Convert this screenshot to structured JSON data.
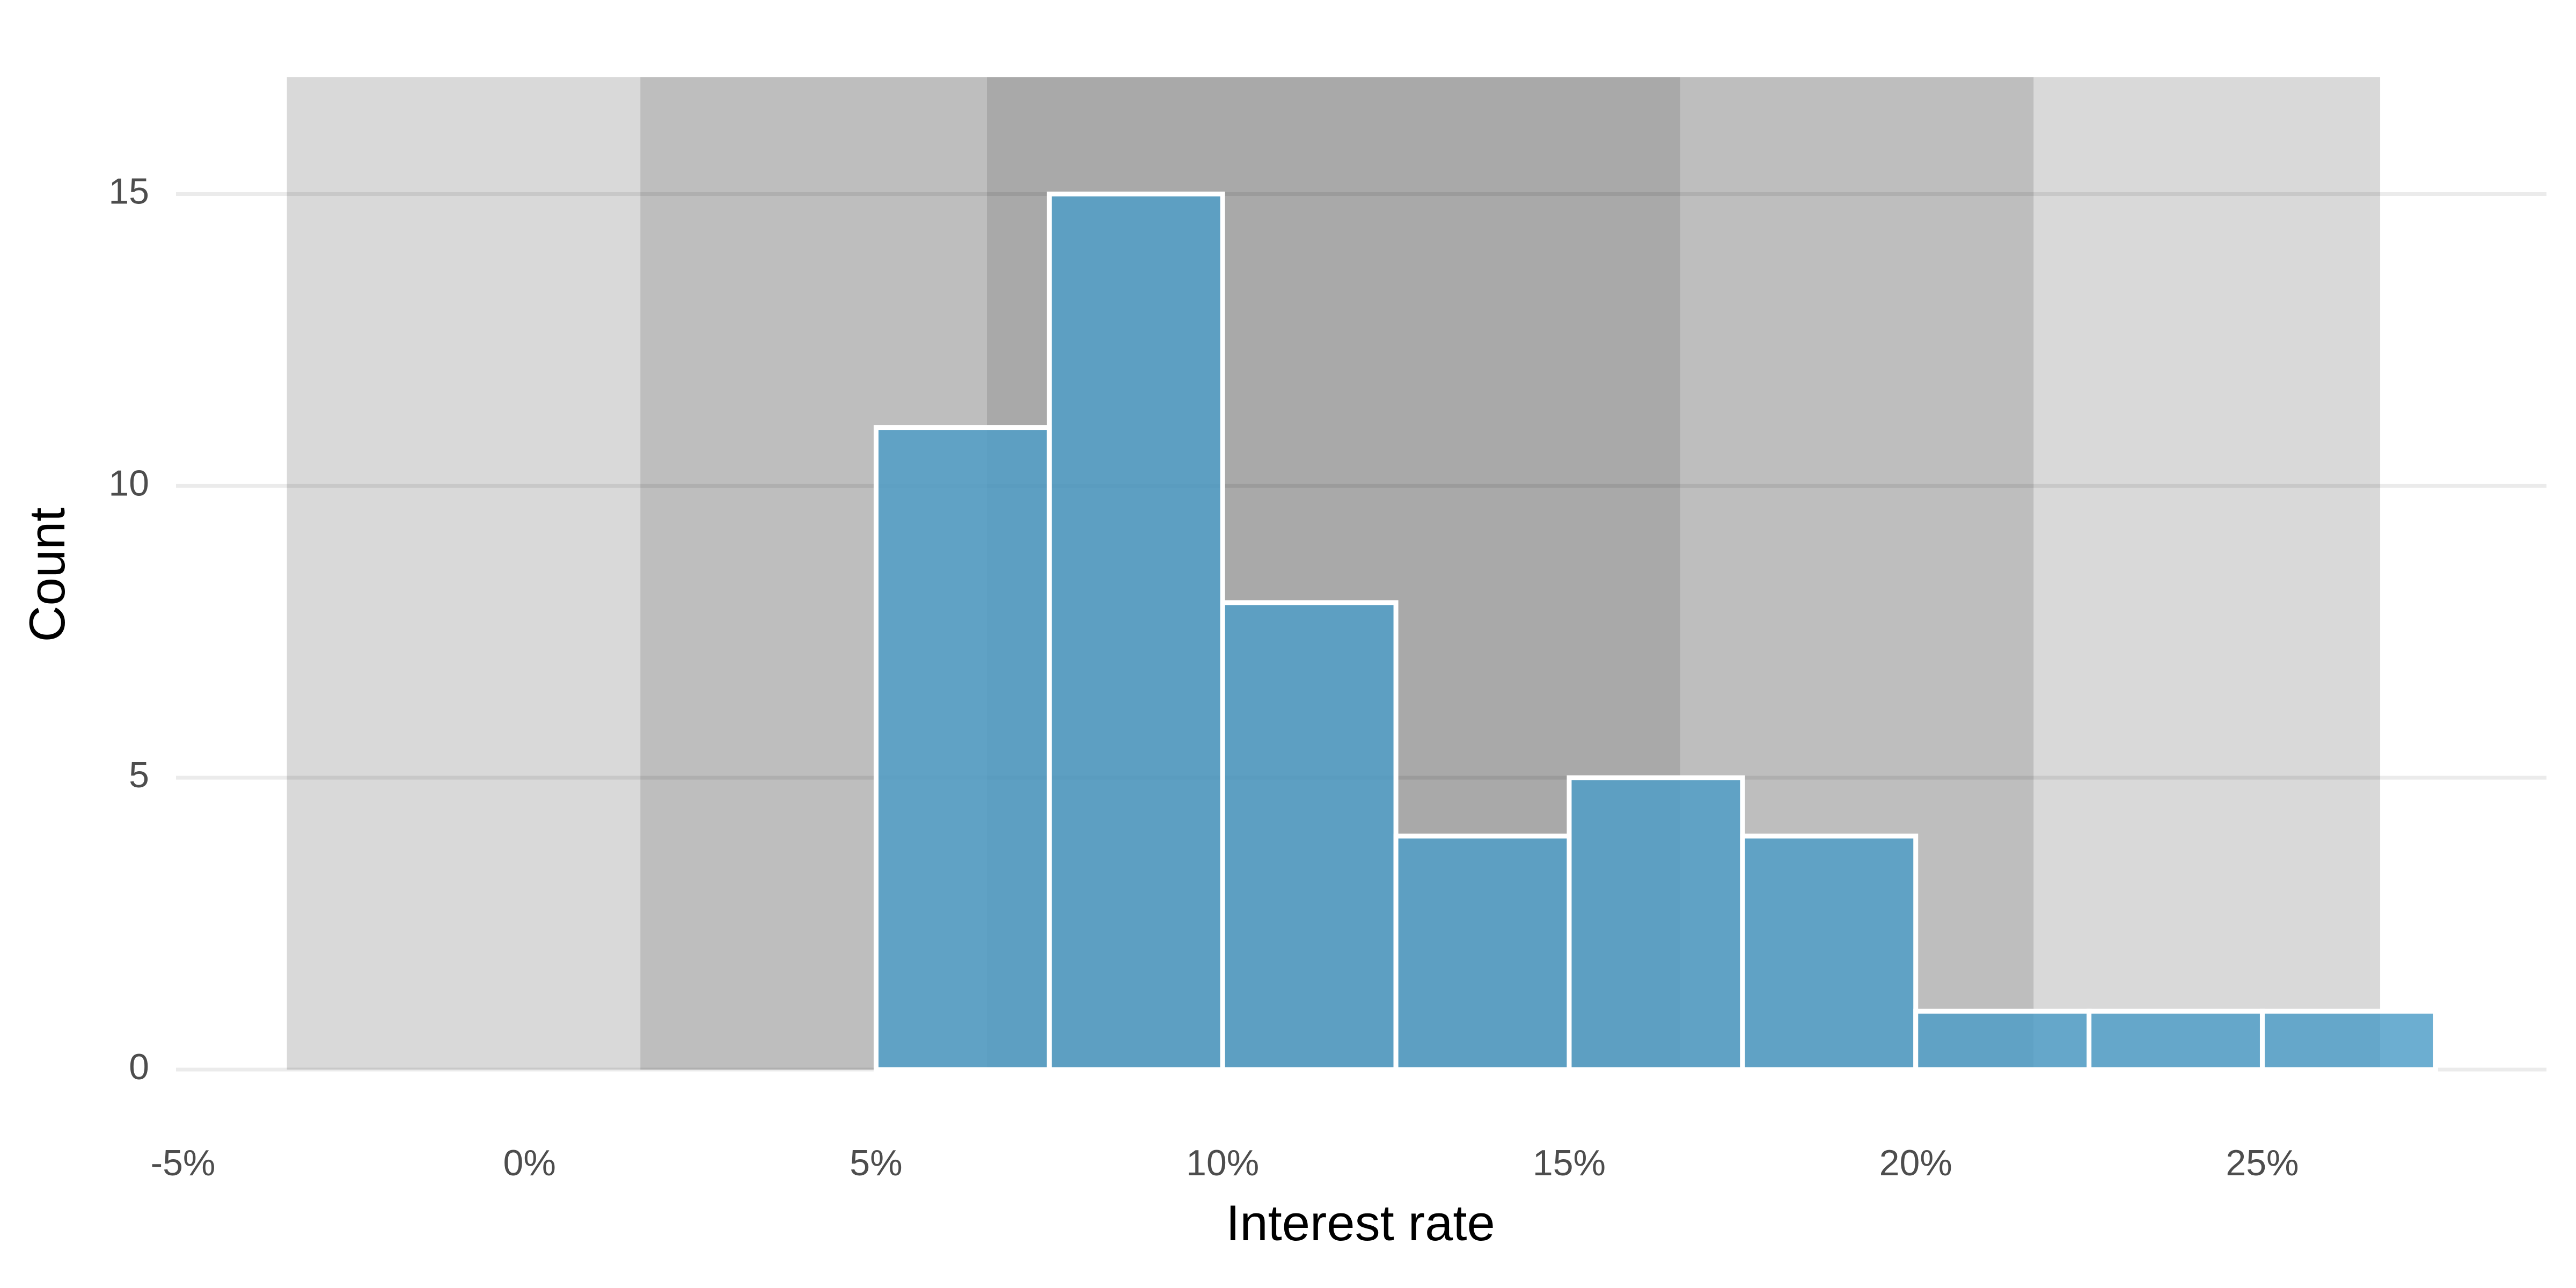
{
  "chart_data": {
    "type": "histogram",
    "x_label": "Interest rate",
    "y_label": "Count",
    "bins": [
      5,
      7.5,
      10,
      12.5,
      15,
      17.5,
      20,
      22.5,
      25,
      27.5
    ],
    "values": [
      11,
      15,
      8,
      4,
      5,
      4,
      1,
      1,
      1
    ],
    "color": "#4c9cc7",
    "xlim": [
      -5.1,
      29.1
    ],
    "ylim": [
      0,
      17
    ],
    "xticks": [
      {
        "value": -5,
        "label": "-5%"
      },
      {
        "value": 0,
        "label": "0%"
      },
      {
        "value": 5,
        "label": "5%"
      },
      {
        "value": 10,
        "label": "10%"
      },
      {
        "value": 15,
        "label": "15%"
      },
      {
        "value": 20,
        "label": "20%"
      },
      {
        "value": 25,
        "label": "25%"
      }
    ],
    "yticks": [
      0,
      5,
      10,
      15
    ],
    "grid": true,
    "shaded_bands": [
      {
        "xmin": -3.5,
        "xmax": 26.7,
        "color": "#d9d9d9"
      },
      {
        "xmin": 1.6,
        "xmax": 21.7,
        "color": "#bebebe"
      },
      {
        "xmin": 6.6,
        "xmax": 16.6,
        "color": "#a9a9a9"
      }
    ]
  }
}
